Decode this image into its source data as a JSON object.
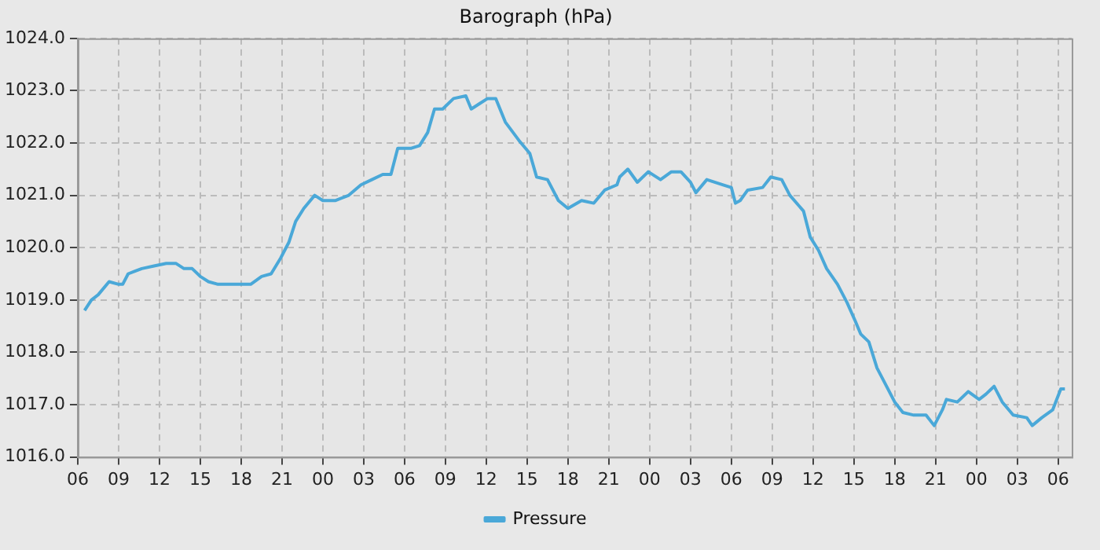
{
  "chart_data": {
    "type": "line",
    "title": "Barograph (hPa)",
    "x": [
      6.5,
      7.0,
      7.5,
      8.3,
      9.0,
      9.3,
      9.7,
      10.2,
      10.7,
      11.6,
      12.5,
      13.2,
      13.8,
      14.4,
      15.0,
      15.6,
      16.3,
      17.1,
      18.0,
      18.7,
      19.5,
      20.2,
      20.9,
      21.5,
      22.0,
      22.6,
      23.4,
      24.0,
      24.9,
      25.9,
      26.8,
      27.6,
      28.4,
      29.0,
      29.5,
      30.5,
      31.1,
      31.7,
      32.2,
      32.8,
      33.6,
      34.5,
      34.9,
      35.5,
      36.1,
      36.7,
      37.4,
      38.4,
      39.2,
      39.7,
      40.5,
      41.3,
      42.0,
      43.0,
      43.9,
      44.7,
      45.6,
      45.8,
      46.4,
      47.1,
      47.9,
      48.8,
      49.6,
      50.3,
      51.0,
      51.4,
      52.2,
      53.4,
      54.0,
      54.3,
      54.65,
      55.2,
      56.3,
      56.9,
      57.7,
      58.3,
      59.3,
      59.8,
      60.4,
      61.0,
      61.8,
      62.5,
      63.1,
      63.5,
      64.1,
      64.7,
      65.4,
      66.0,
      66.6,
      67.4,
      68.3,
      68.9,
      69.5,
      69.8,
      70.6,
      71.4,
      72.2,
      72.7,
      73.3,
      73.9,
      74.7,
      75.7,
      76.1,
      76.8,
      77.6,
      78.2,
      78.5
    ],
    "series": [
      {
        "name": "Pressure",
        "color": "#4aa8d8",
        "values": [
          1018.8,
          1019.0,
          1019.1,
          1019.35,
          1019.3,
          1019.3,
          1019.5,
          1019.55,
          1019.6,
          1019.65,
          1019.7,
          1019.7,
          1019.6,
          1019.6,
          1019.45,
          1019.35,
          1019.3,
          1019.3,
          1019.3,
          1019.3,
          1019.45,
          1019.5,
          1019.8,
          1020.1,
          1020.5,
          1020.75,
          1021.0,
          1020.9,
          1020.9,
          1021.0,
          1021.2,
          1021.3,
          1021.4,
          1021.4,
          1021.9,
          1021.9,
          1021.95,
          1022.2,
          1022.65,
          1022.65,
          1022.85,
          1022.9,
          1022.65,
          1022.75,
          1022.85,
          1022.85,
          1022.4,
          1022.05,
          1021.8,
          1021.35,
          1021.3,
          1020.9,
          1020.75,
          1020.9,
          1020.85,
          1021.1,
          1021.2,
          1021.35,
          1021.5,
          1021.25,
          1021.45,
          1021.3,
          1021.45,
          1021.45,
          1021.25,
          1021.05,
          1021.3,
          1021.2,
          1021.15,
          1020.85,
          1020.9,
          1021.1,
          1021.15,
          1021.35,
          1021.3,
          1021.0,
          1020.7,
          1020.2,
          1019.95,
          1019.6,
          1019.3,
          1018.95,
          1018.6,
          1018.35,
          1018.2,
          1017.7,
          1017.35,
          1017.05,
          1016.85,
          1016.8,
          1016.8,
          1016.6,
          1016.9,
          1017.1,
          1017.05,
          1017.25,
          1017.1,
          1017.2,
          1017.35,
          1017.05,
          1016.8,
          1016.75,
          1016.6,
          1016.75,
          1016.9,
          1017.3,
          1017.3
        ]
      }
    ],
    "xlim": [
      6,
      79
    ],
    "xticks": [
      {
        "value": 6,
        "label": "06"
      },
      {
        "value": 9,
        "label": "09"
      },
      {
        "value": 12,
        "label": "12"
      },
      {
        "value": 15,
        "label": "15"
      },
      {
        "value": 18,
        "label": "18"
      },
      {
        "value": 21,
        "label": "21"
      },
      {
        "value": 24,
        "label": "00"
      },
      {
        "value": 27,
        "label": "03"
      },
      {
        "value": 30,
        "label": "06"
      },
      {
        "value": 33,
        "label": "09"
      },
      {
        "value": 36,
        "label": "12"
      },
      {
        "value": 39,
        "label": "15"
      },
      {
        "value": 42,
        "label": "18"
      },
      {
        "value": 45,
        "label": "21"
      },
      {
        "value": 48,
        "label": "00"
      },
      {
        "value": 51,
        "label": "03"
      },
      {
        "value": 54,
        "label": "06"
      },
      {
        "value": 57,
        "label": "09"
      },
      {
        "value": 60,
        "label": "12"
      },
      {
        "value": 63,
        "label": "15"
      },
      {
        "value": 66,
        "label": "18"
      },
      {
        "value": 69,
        "label": "21"
      },
      {
        "value": 72,
        "label": "00"
      },
      {
        "value": 75,
        "label": "03"
      },
      {
        "value": 78,
        "label": "06"
      }
    ],
    "ylim": [
      1016,
      1024
    ],
    "yticks": [
      {
        "value": 1016,
        "label": "1016.0"
      },
      {
        "value": 1017,
        "label": "1017.0"
      },
      {
        "value": 1018,
        "label": "1018.0"
      },
      {
        "value": 1019,
        "label": "1019.0"
      },
      {
        "value": 1020,
        "label": "1020.0"
      },
      {
        "value": 1021,
        "label": "1021.0"
      },
      {
        "value": 1022,
        "label": "1022.0"
      },
      {
        "value": 1023,
        "label": "1023.0"
      },
      {
        "value": 1024,
        "label": "1024.0"
      }
    ],
    "grid": true,
    "legend": "bottom",
    "marker": "none",
    "line_style": "solid"
  }
}
